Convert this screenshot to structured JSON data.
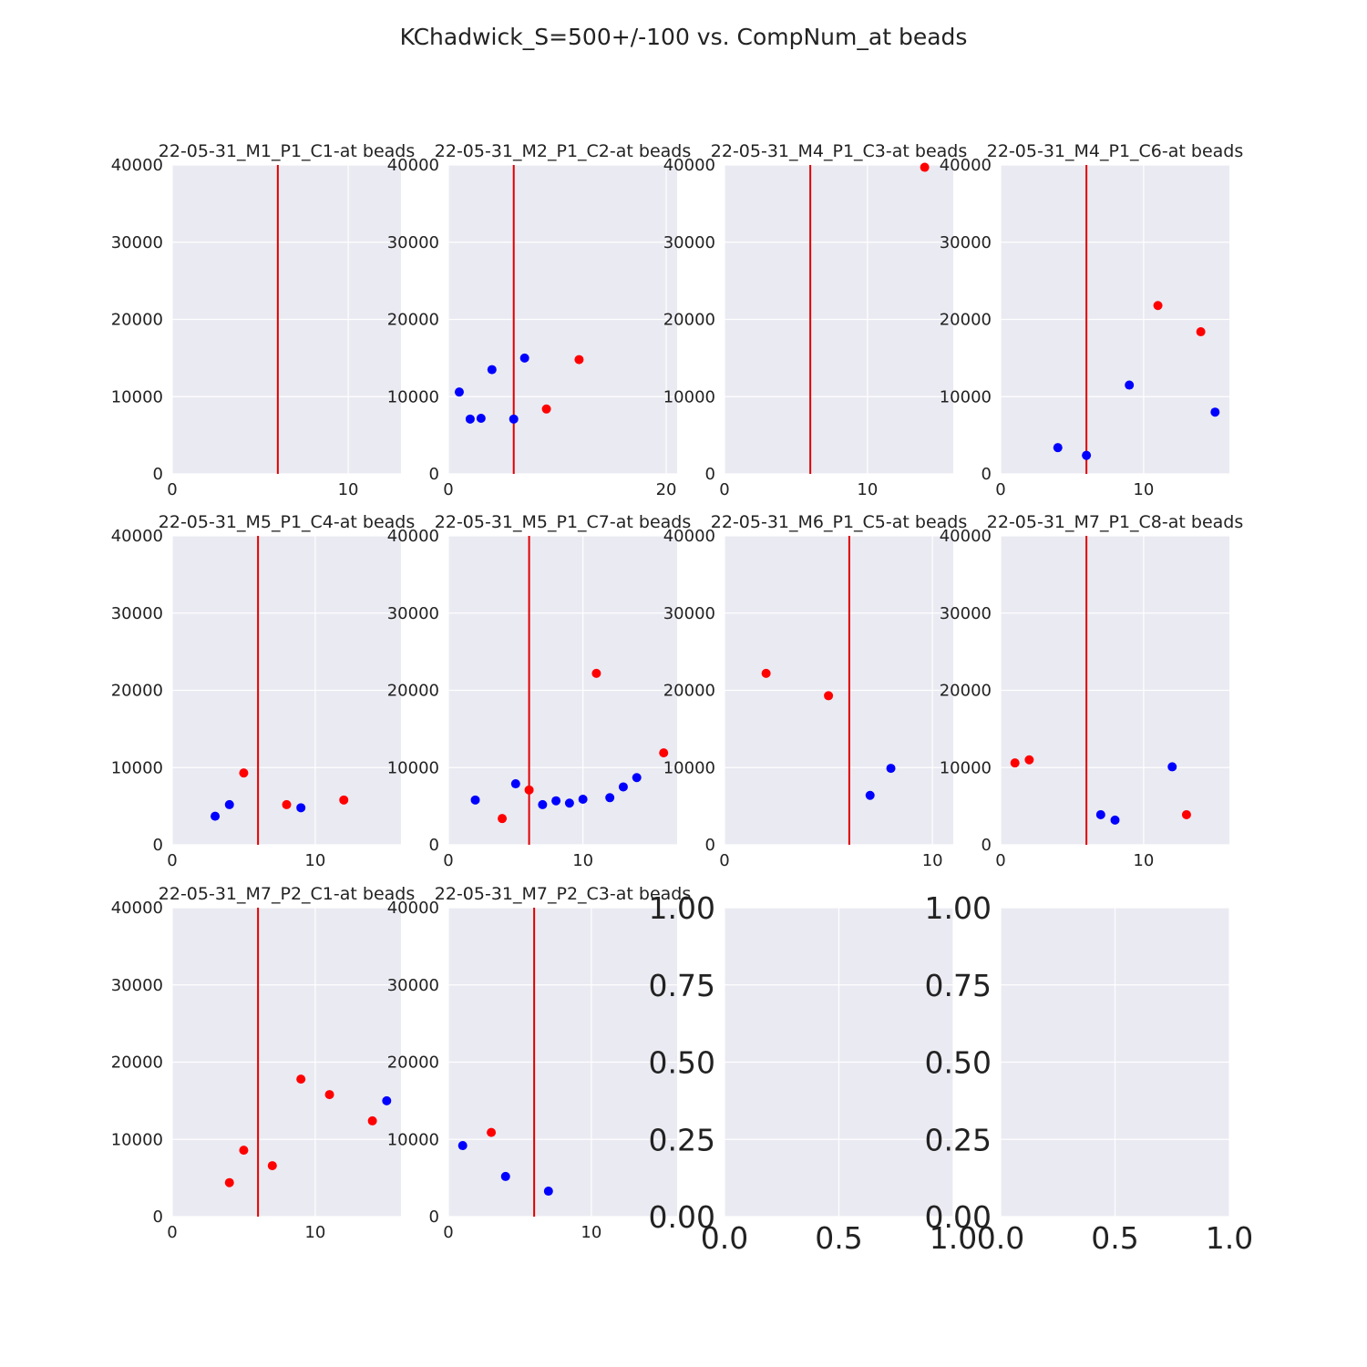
{
  "figure": {
    "suptitle": "KChadwick_S=500+/-100 vs. CompNum_at beads",
    "colors": {
      "background": "#eaeaf2",
      "red": "#ff0000",
      "blue": "#0000ff",
      "vline": "#e00000"
    }
  },
  "chart_data": [
    {
      "type": "scatter",
      "title": "22-05-31_M1_P1_C1-at beads",
      "xlim": [
        0,
        13
      ],
      "ylim": [
        0,
        40000
      ],
      "xticks": [
        0,
        10
      ],
      "yticks": [
        0,
        10000,
        20000,
        30000,
        40000
      ],
      "vline": 6,
      "grid": true,
      "series": [
        {
          "color": "red",
          "x": [],
          "y": []
        },
        {
          "color": "blue",
          "x": [],
          "y": []
        }
      ]
    },
    {
      "type": "scatter",
      "title": "22-05-31_M2_P1_C2-at beads",
      "xlim": [
        0,
        21
      ],
      "ylim": [
        0,
        40000
      ],
      "xticks": [
        0,
        20
      ],
      "yticks": [
        0,
        10000,
        20000,
        30000,
        40000
      ],
      "vline": 6,
      "grid": true,
      "series": [
        {
          "color": "red",
          "x": [
            9,
            12
          ],
          "y": [
            8400,
            14800
          ]
        },
        {
          "color": "blue",
          "x": [
            1,
            2,
            3,
            4,
            6,
            7
          ],
          "y": [
            10600,
            7100,
            7200,
            13500,
            7100,
            15000
          ]
        }
      ]
    },
    {
      "type": "scatter",
      "title": "22-05-31_M4_P1_C3-at beads",
      "xlim": [
        0,
        16
      ],
      "ylim": [
        0,
        40000
      ],
      "xticks": [
        0,
        10
      ],
      "yticks": [
        0,
        10000,
        20000,
        30000,
        40000
      ],
      "vline": 6,
      "grid": true,
      "series": [
        {
          "color": "red",
          "x": [
            14
          ],
          "y": [
            39700
          ]
        },
        {
          "color": "blue",
          "x": [],
          "y": []
        }
      ]
    },
    {
      "type": "scatter",
      "title": "22-05-31_M4_P1_C6-at beads",
      "xlim": [
        0,
        16
      ],
      "ylim": [
        0,
        40000
      ],
      "xticks": [
        0,
        10
      ],
      "yticks": [
        0,
        10000,
        20000,
        30000,
        40000
      ],
      "vline": 6,
      "grid": true,
      "series": [
        {
          "color": "red",
          "x": [
            11,
            14
          ],
          "y": [
            21800,
            18400
          ]
        },
        {
          "color": "blue",
          "x": [
            4,
            6,
            9,
            15
          ],
          "y": [
            3400,
            2400,
            11500,
            8000
          ]
        }
      ]
    },
    {
      "type": "scatter",
      "title": "22-05-31_M5_P1_C4-at beads",
      "xlim": [
        0,
        16
      ],
      "ylim": [
        0,
        40000
      ],
      "xticks": [
        0,
        10
      ],
      "yticks": [
        0,
        10000,
        20000,
        30000,
        40000
      ],
      "vline": 6,
      "grid": true,
      "series": [
        {
          "color": "red",
          "x": [
            5,
            8,
            12
          ],
          "y": [
            9300,
            5200,
            5800
          ]
        },
        {
          "color": "blue",
          "x": [
            3,
            4,
            9
          ],
          "y": [
            3700,
            5200,
            4800
          ]
        }
      ]
    },
    {
      "type": "scatter",
      "title": "22-05-31_M5_P1_C7-at beads",
      "xlim": [
        0,
        17
      ],
      "ylim": [
        0,
        40000
      ],
      "xticks": [
        0,
        10
      ],
      "yticks": [
        0,
        10000,
        20000,
        30000,
        40000
      ],
      "vline": 6,
      "grid": true,
      "series": [
        {
          "color": "red",
          "x": [
            4,
            6,
            11,
            16
          ],
          "y": [
            3400,
            7100,
            22200,
            11900
          ]
        },
        {
          "color": "blue",
          "x": [
            2,
            5,
            7,
            8,
            9,
            10,
            12,
            13,
            14
          ],
          "y": [
            5800,
            7900,
            5200,
            5700,
            5400,
            5900,
            6100,
            7500,
            8700
          ]
        }
      ]
    },
    {
      "type": "scatter",
      "title": "22-05-31_M6_P1_C5-at beads",
      "xlim": [
        0,
        11
      ],
      "ylim": [
        0,
        40000
      ],
      "xticks": [
        0,
        10
      ],
      "yticks": [
        0,
        10000,
        20000,
        30000,
        40000
      ],
      "vline": 6,
      "grid": true,
      "series": [
        {
          "color": "red",
          "x": [
            2,
            5
          ],
          "y": [
            22200,
            19300
          ]
        },
        {
          "color": "blue",
          "x": [
            7,
            8
          ],
          "y": [
            6400,
            9900
          ]
        }
      ]
    },
    {
      "type": "scatter",
      "title": "22-05-31_M7_P1_C8-at beads",
      "xlim": [
        0,
        16
      ],
      "ylim": [
        0,
        40000
      ],
      "xticks": [
        0,
        10
      ],
      "yticks": [
        0,
        10000,
        20000,
        30000,
        40000
      ],
      "vline": 6,
      "grid": true,
      "series": [
        {
          "color": "red",
          "x": [
            1,
            2,
            13
          ],
          "y": [
            10600,
            11000,
            3900
          ]
        },
        {
          "color": "blue",
          "x": [
            7,
            8,
            12
          ],
          "y": [
            3900,
            3200,
            10100
          ]
        }
      ]
    },
    {
      "type": "scatter",
      "title": "22-05-31_M7_P2_C1-at beads",
      "xlim": [
        0,
        16
      ],
      "ylim": [
        0,
        40000
      ],
      "xticks": [
        0,
        10
      ],
      "yticks": [
        0,
        10000,
        20000,
        30000,
        40000
      ],
      "vline": 6,
      "grid": true,
      "series": [
        {
          "color": "red",
          "x": [
            4,
            5,
            7,
            9,
            11,
            14
          ],
          "y": [
            4400,
            8600,
            6600,
            17800,
            15800,
            12400
          ]
        },
        {
          "color": "blue",
          "x": [
            15
          ],
          "y": [
            15000
          ]
        }
      ]
    },
    {
      "type": "scatter",
      "title": "22-05-31_M7_P2_C3-at beads",
      "xlim": [
        0,
        16
      ],
      "ylim": [
        0,
        40000
      ],
      "xticks": [
        0,
        10
      ],
      "yticks": [
        0,
        10000,
        20000,
        30000,
        40000
      ],
      "vline": 6,
      "grid": true,
      "series": [
        {
          "color": "red",
          "x": [
            3
          ],
          "y": [
            10900
          ]
        },
        {
          "color": "blue",
          "x": [
            1,
            4,
            7
          ],
          "y": [
            9200,
            5200,
            3300
          ]
        }
      ]
    },
    {
      "type": "scatter",
      "title": "",
      "xlim": [
        0,
        1
      ],
      "ylim": [
        0,
        1
      ],
      "xticks": [
        0.0,
        0.5,
        1.0
      ],
      "yticks": [
        0.0,
        0.25,
        0.5,
        0.75,
        1.0
      ],
      "xtick_labels": [
        "0.0",
        "0.5",
        "1.0"
      ],
      "ytick_labels": [
        "0.00",
        "0.25",
        "0.50",
        "0.75",
        "1.00"
      ],
      "grid": true,
      "empty": true,
      "series": []
    },
    {
      "type": "scatter",
      "title": "",
      "xlim": [
        0,
        1
      ],
      "ylim": [
        0,
        1
      ],
      "xticks": [
        0.0,
        0.5,
        1.0
      ],
      "yticks": [
        0.0,
        0.25,
        0.5,
        0.75,
        1.0
      ],
      "xtick_labels": [
        "0.0",
        "0.5",
        "1.0"
      ],
      "ytick_labels": [
        "0.00",
        "0.25",
        "0.50",
        "0.75",
        "1.00"
      ],
      "grid": true,
      "empty": true,
      "series": []
    }
  ]
}
